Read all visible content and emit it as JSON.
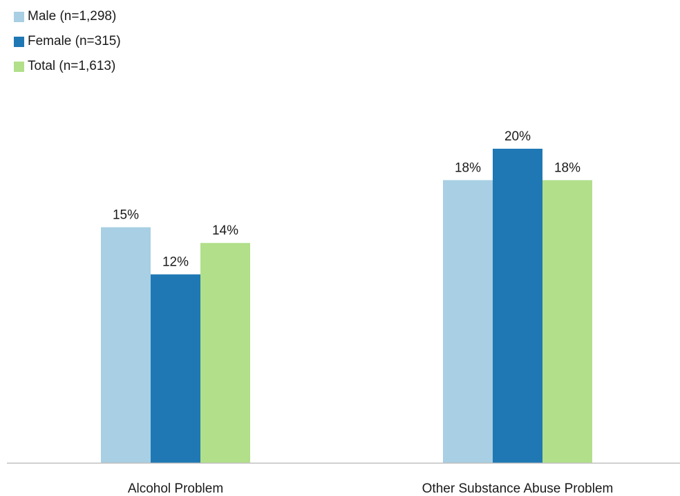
{
  "chart_data": {
    "type": "bar",
    "title": "",
    "xlabel": "",
    "ylabel": "",
    "categories": [
      "Alcohol Problem",
      "Other Substance Abuse Problem"
    ],
    "series": [
      {
        "name": "Male (n=1,298)",
        "values": [
          15,
          18
        ],
        "labels": [
          "15%",
          "18%"
        ],
        "color": "#a8cfe3"
      },
      {
        "name": "Female (n=315)",
        "values": [
          12,
          20
        ],
        "labels": [
          "12%",
          "20%"
        ],
        "color": "#1f78b4"
      },
      {
        "name": "Total (n=1,613)",
        "values": [
          14,
          18
        ],
        "labels": [
          "14%",
          "18%"
        ],
        "color": "#b2df8a"
      }
    ],
    "value_format": "percent",
    "ylim": [
      0,
      25
    ],
    "grid": false,
    "legend_position": "top-left"
  }
}
